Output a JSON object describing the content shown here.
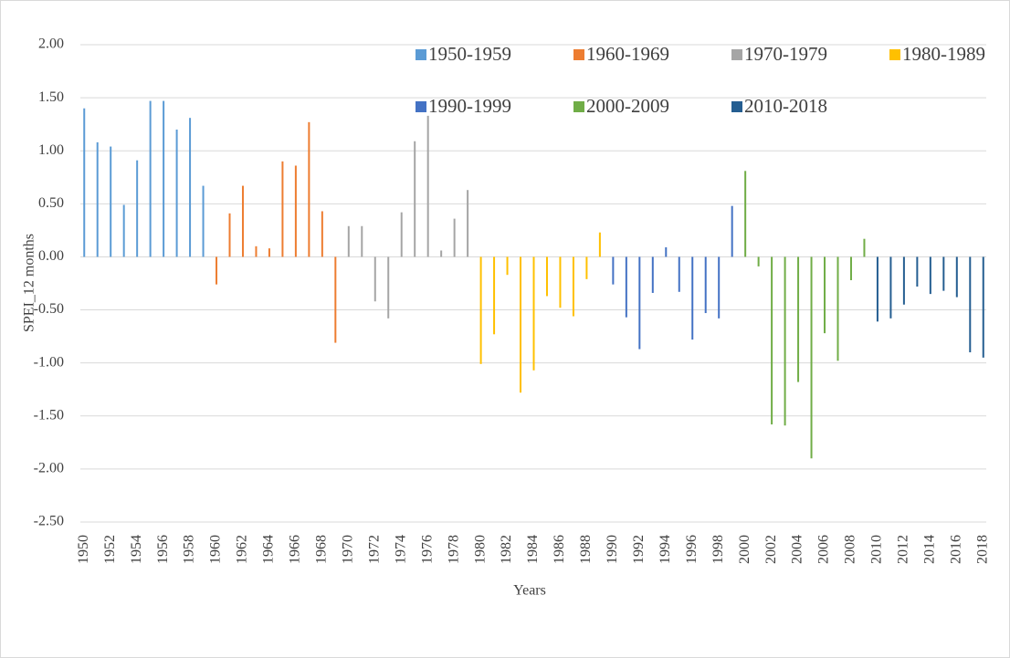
{
  "chart_data": {
    "type": "bar",
    "x_label": "Years",
    "y_label": "SPEI_12 months",
    "categories": [
      "1950",
      null,
      "1952",
      null,
      "1954",
      null,
      "1956",
      null,
      "1958",
      null,
      "1960",
      null,
      "1962",
      null,
      "1964",
      null,
      "1966",
      null,
      "1968",
      null,
      "1970",
      null,
      "1972",
      null,
      "1974",
      null,
      "1976",
      null,
      "1978",
      null,
      "1980",
      null,
      "1982",
      null,
      "1984",
      null,
      "1986",
      null,
      "1988",
      null,
      "1990",
      null,
      "1992",
      null,
      "1994",
      null,
      "1996",
      null,
      "1998",
      null,
      "2000",
      null,
      "2002",
      null,
      "2004",
      null,
      "2006",
      null,
      "2008",
      null,
      "2010",
      null,
      "2012",
      null,
      "2014",
      null,
      "2016",
      null,
      "2018"
    ],
    "series": [
      {
        "name": "1950-1959",
        "color": "#5b9bd5",
        "values": [
          1.4,
          1.08,
          1.04,
          0.49,
          0.91,
          1.47,
          1.47,
          1.2,
          1.31,
          0.67,
          null,
          null,
          null,
          null,
          null,
          null,
          null,
          null,
          null,
          null,
          null,
          null,
          null,
          null,
          null,
          null,
          null,
          null,
          null,
          null,
          null,
          null,
          null,
          null,
          null,
          null,
          null,
          null,
          null,
          null,
          null,
          null,
          null,
          null,
          null,
          null,
          null,
          null,
          null,
          null,
          null,
          null,
          null,
          null,
          null,
          null,
          null,
          null,
          null,
          null,
          null,
          null,
          null,
          null,
          null,
          null,
          null,
          null,
          null
        ]
      },
      {
        "name": "1960-1969",
        "color": "#ed7d31",
        "values": [
          null,
          null,
          null,
          null,
          null,
          null,
          null,
          null,
          null,
          null,
          -0.26,
          0.41,
          0.67,
          0.1,
          0.08,
          0.9,
          0.86,
          1.27,
          0.43,
          -0.81,
          null,
          null,
          null,
          null,
          null,
          null,
          null,
          null,
          null,
          null,
          null,
          null,
          null,
          null,
          null,
          null,
          null,
          null,
          null,
          null,
          null,
          null,
          null,
          null,
          null,
          null,
          null,
          null,
          null,
          null,
          null,
          null,
          null,
          null,
          null,
          null,
          null,
          null,
          null,
          null,
          null,
          null,
          null,
          null,
          null,
          null,
          null,
          null,
          null
        ]
      },
      {
        "name": "1970-1979",
        "color": "#a5a5a5",
        "values": [
          null,
          null,
          null,
          null,
          null,
          null,
          null,
          null,
          null,
          null,
          null,
          null,
          null,
          null,
          null,
          null,
          null,
          null,
          null,
          null,
          0.29,
          0.29,
          -0.42,
          -0.58,
          0.42,
          1.09,
          1.33,
          0.06,
          0.36,
          0.63,
          null,
          null,
          null,
          null,
          null,
          null,
          null,
          null,
          null,
          null,
          null,
          null,
          null,
          null,
          null,
          null,
          null,
          null,
          null,
          null,
          null,
          null,
          null,
          null,
          null,
          null,
          null,
          null,
          null,
          null,
          null,
          null,
          null,
          null,
          null,
          null,
          null,
          null,
          null
        ]
      },
      {
        "name": "1980-1989",
        "color": "#ffc000",
        "values": [
          null,
          null,
          null,
          null,
          null,
          null,
          null,
          null,
          null,
          null,
          null,
          null,
          null,
          null,
          null,
          null,
          null,
          null,
          null,
          null,
          null,
          null,
          null,
          null,
          null,
          null,
          null,
          null,
          null,
          null,
          -1.01,
          -0.73,
          -0.17,
          -1.28,
          -1.07,
          -0.37,
          -0.48,
          -0.56,
          -0.21,
          0.23,
          null,
          null,
          null,
          null,
          null,
          null,
          null,
          null,
          null,
          null,
          null,
          null,
          null,
          null,
          null,
          null,
          null,
          null,
          null,
          null,
          null,
          null,
          null,
          null,
          null,
          null,
          null,
          null,
          null
        ]
      },
      {
        "name": "1990-1999",
        "color": "#4472c4",
        "values": [
          null,
          null,
          null,
          null,
          null,
          null,
          null,
          null,
          null,
          null,
          null,
          null,
          null,
          null,
          null,
          null,
          null,
          null,
          null,
          null,
          null,
          null,
          null,
          null,
          null,
          null,
          null,
          null,
          null,
          null,
          null,
          null,
          null,
          null,
          null,
          null,
          null,
          null,
          null,
          null,
          -0.26,
          -0.57,
          -0.87,
          -0.34,
          0.09,
          -0.33,
          -0.78,
          -0.53,
          -0.58,
          0.48,
          null,
          null,
          null,
          null,
          null,
          null,
          null,
          null,
          null,
          null,
          null,
          null,
          null,
          null,
          null,
          null,
          null,
          null,
          null
        ]
      },
      {
        "name": "2000-2009",
        "color": "#70ad47",
        "values": [
          null,
          null,
          null,
          null,
          null,
          null,
          null,
          null,
          null,
          null,
          null,
          null,
          null,
          null,
          null,
          null,
          null,
          null,
          null,
          null,
          null,
          null,
          null,
          null,
          null,
          null,
          null,
          null,
          null,
          null,
          null,
          null,
          null,
          null,
          null,
          null,
          null,
          null,
          null,
          null,
          null,
          null,
          null,
          null,
          null,
          null,
          null,
          null,
          null,
          null,
          0.81,
          -0.09,
          -1.58,
          -1.59,
          -1.18,
          -1.9,
          -0.72,
          -0.98,
          -0.22,
          0.17,
          null,
          null,
          null,
          null,
          null,
          null,
          null,
          null,
          null
        ]
      },
      {
        "name": "2010-2018",
        "color": "#255e91",
        "values": [
          null,
          null,
          null,
          null,
          null,
          null,
          null,
          null,
          null,
          null,
          null,
          null,
          null,
          null,
          null,
          null,
          null,
          null,
          null,
          null,
          null,
          null,
          null,
          null,
          null,
          null,
          null,
          null,
          null,
          null,
          null,
          null,
          null,
          null,
          null,
          null,
          null,
          null,
          null,
          null,
          null,
          null,
          null,
          null,
          null,
          null,
          null,
          null,
          null,
          null,
          null,
          null,
          null,
          null,
          null,
          null,
          null,
          null,
          null,
          null,
          -0.61,
          -0.58,
          -0.45,
          -0.28,
          -0.35,
          -0.32,
          -0.38,
          -0.9,
          -0.95
        ]
      }
    ],
    "ylim": [
      -2.5,
      2
    ],
    "yticks": [
      {
        "value": -2.5,
        "label": "-2.50"
      },
      {
        "value": -2,
        "label": "-2.00"
      },
      {
        "value": -1.5,
        "label": "-1.50"
      },
      {
        "value": -1,
        "label": "-1.00"
      },
      {
        "value": -0.5,
        "label": "-0.50"
      },
      {
        "value": 0,
        "label": "0.00"
      },
      {
        "value": 0.5,
        "label": "0.50"
      },
      {
        "value": 1,
        "label": "1.00"
      },
      {
        "value": 1.5,
        "label": "1.50"
      },
      {
        "value": 2,
        "label": "2.00"
      }
    ],
    "grid": true,
    "legend": "top-right"
  }
}
